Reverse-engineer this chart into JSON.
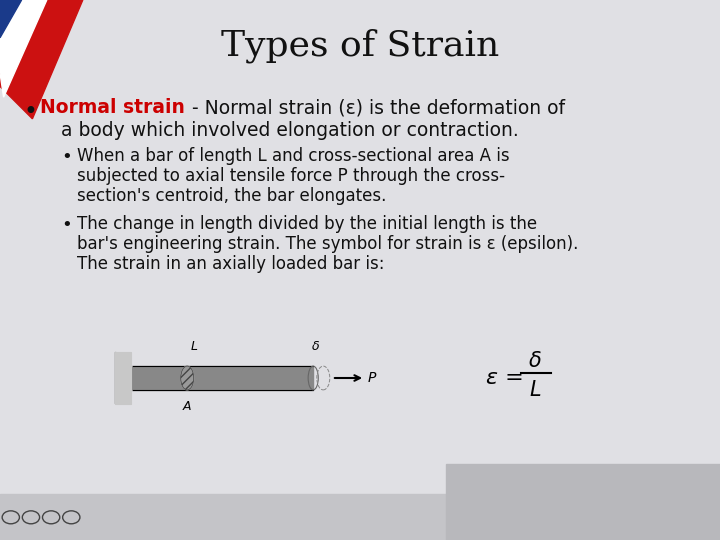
{
  "title": "Types of Strain",
  "title_fontsize": 26,
  "bg_color": "#e0e0e4",
  "red_color": "#cc0000",
  "text_color": "#111111",
  "bullet1_red": "Normal strain",
  "bullet1_rest": " - Normal strain (ε) is the deformation of",
  "bullet1_line2": "   a body which involved elongation or contraction.",
  "sub1_line1": "When a bar of length L and cross-sectional area A is",
  "sub1_line2": "subjected to axial tensile force P through the cross-",
  "sub1_line3": "section's centroid, the bar elongates.",
  "sub2_line1": "The change in length divided by the initial length is the",
  "sub2_line2": "bar's engineering strain. The symbol for strain is ε (epsilon).",
  "sub2_line3": "The strain in an axially loaded bar is:",
  "stripe_red": "#cc1111",
  "stripe_blue": "#1a3a8a",
  "stripe_white": "#ffffff",
  "footer_color": "#cccccc"
}
